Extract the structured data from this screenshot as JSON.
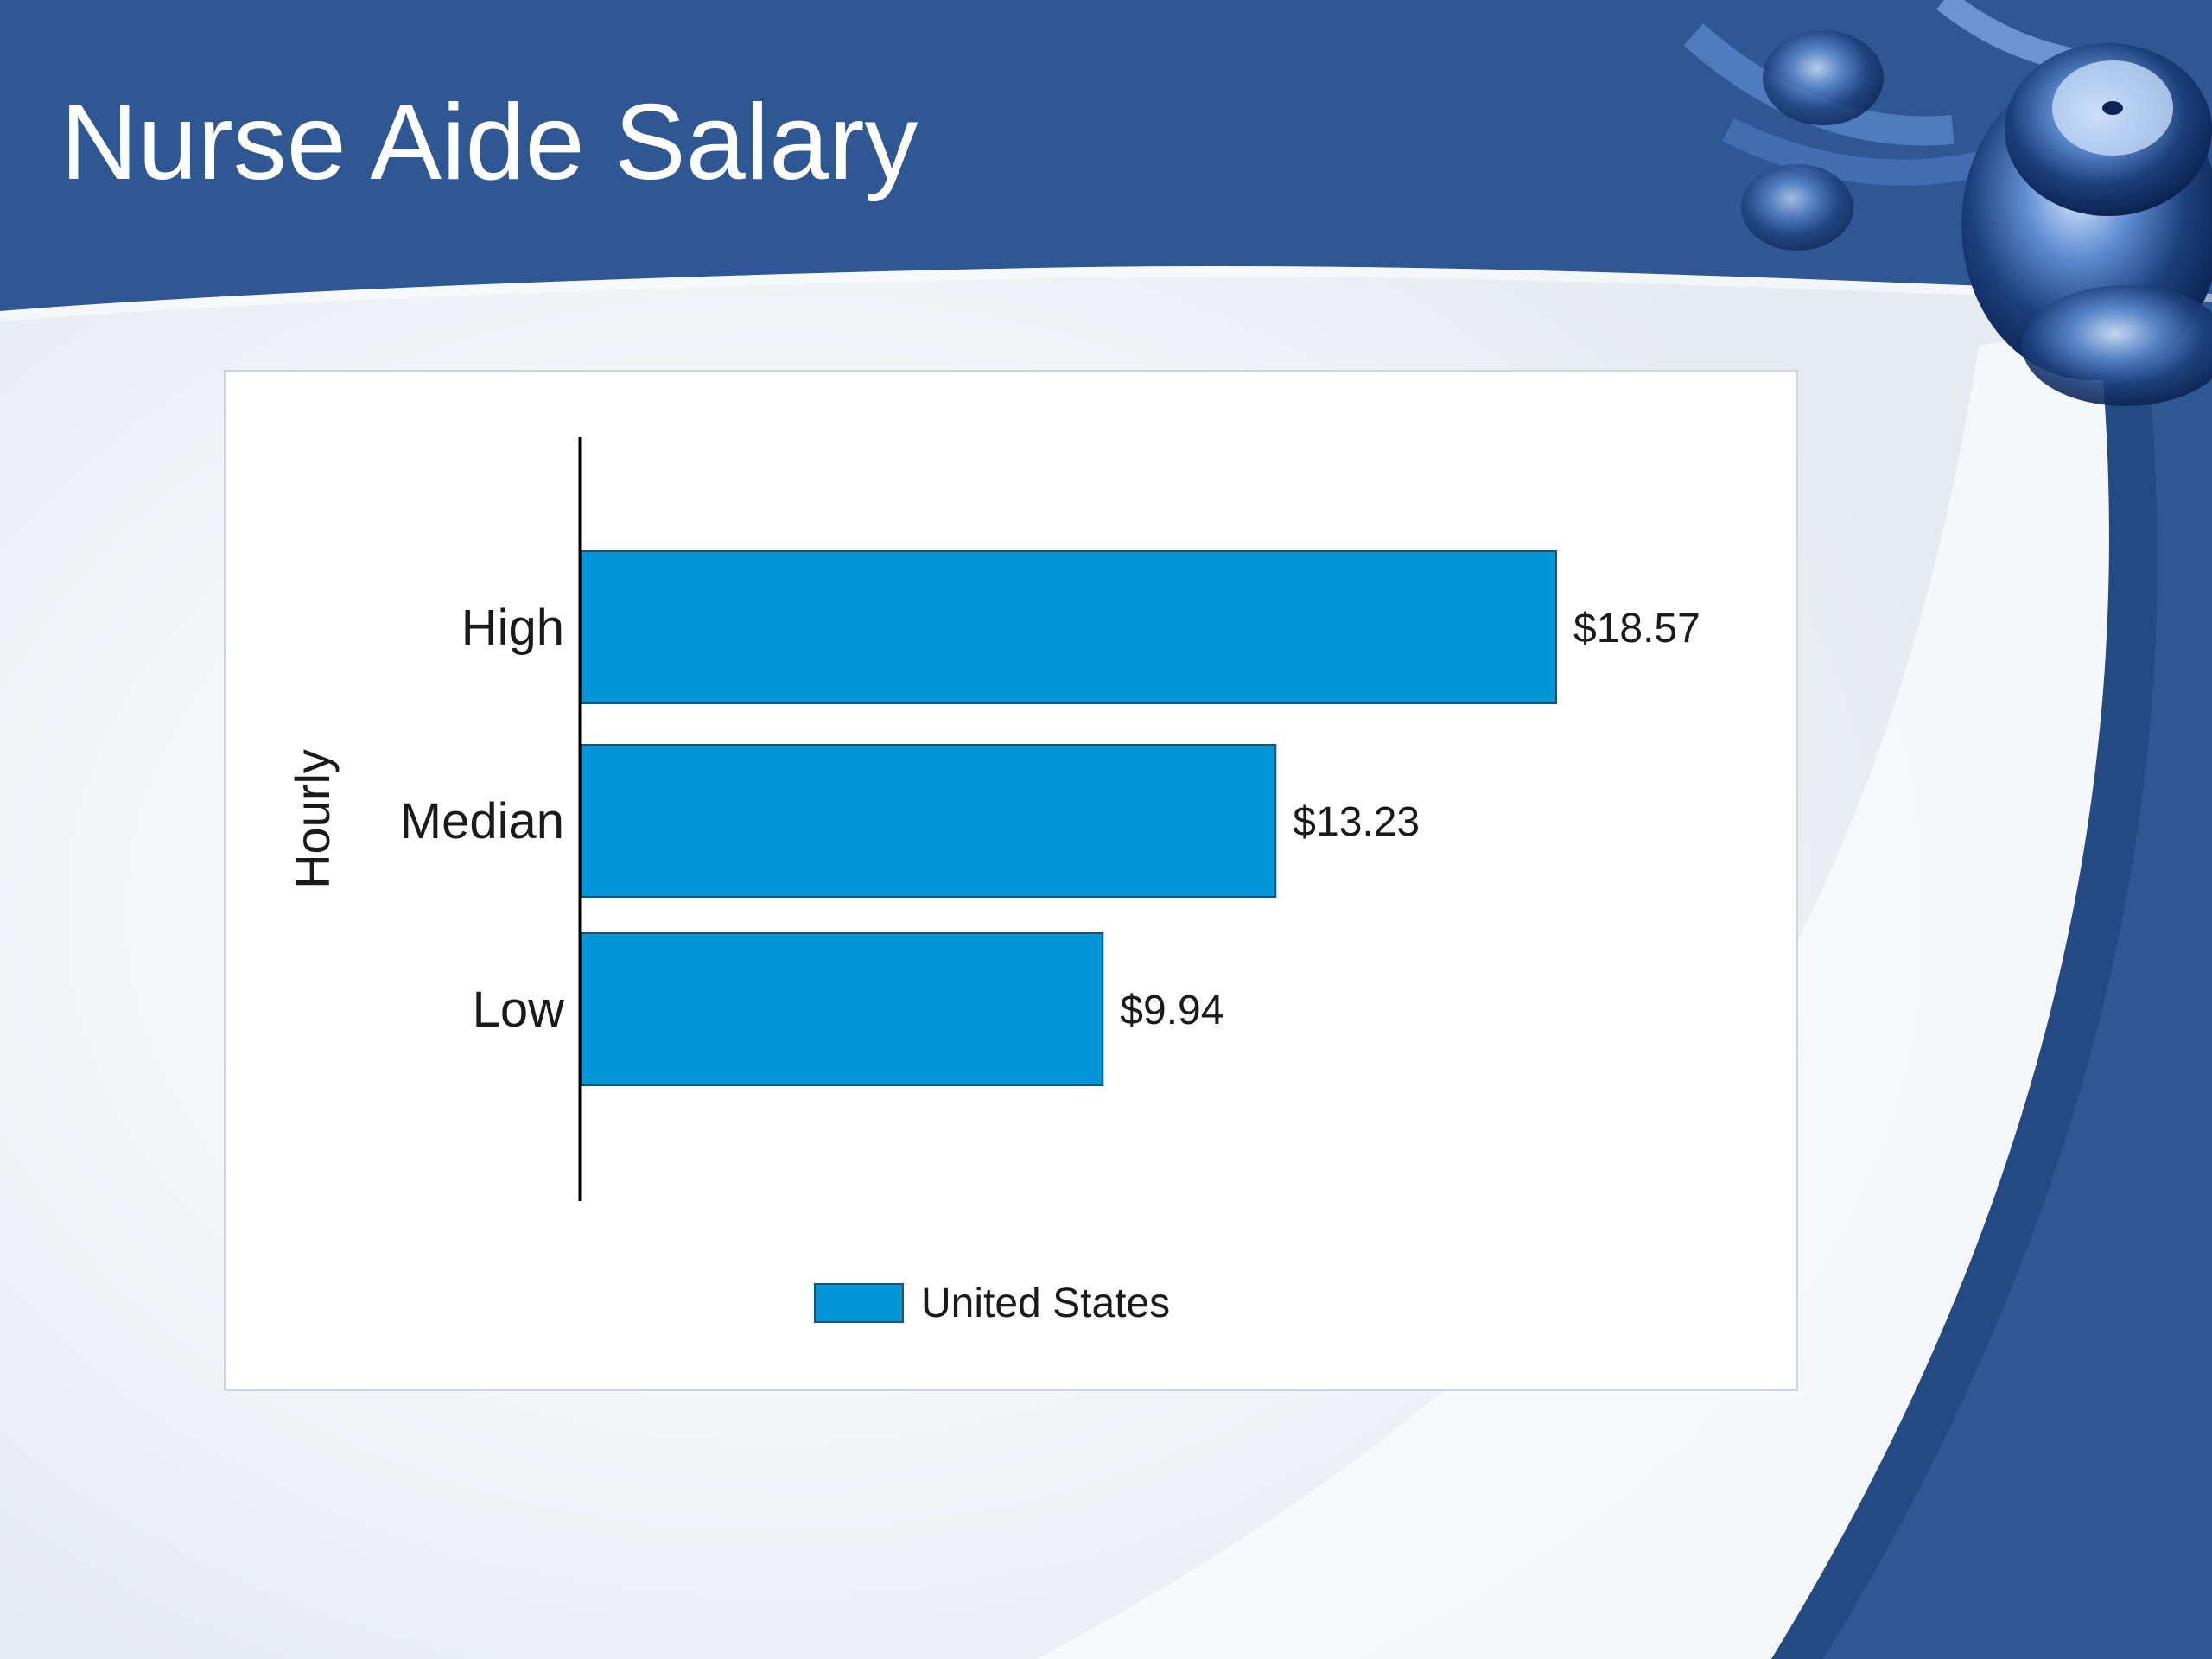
{
  "slide": {
    "title": "Nurse Aide Salary"
  },
  "colors": {
    "header_blue": "#2f5794",
    "bar_fill": "#0296d6",
    "bar_stroke": "#1d4f7a"
  },
  "decoration": {
    "image": "stethoscope-image"
  },
  "chart_data": {
    "type": "bar",
    "orientation": "horizontal",
    "categories": [
      "High",
      "Median",
      "Low"
    ],
    "series": [
      {
        "name": "United States",
        "values": [
          18.57,
          13.23,
          9.94
        ]
      }
    ],
    "value_labels": [
      "$18.57",
      "$13.23",
      "$9.94"
    ],
    "ylabel": "Hourly",
    "legend": [
      "United States"
    ],
    "legend_position": "bottom",
    "xlim": [
      0,
      20
    ],
    "grid": false
  }
}
